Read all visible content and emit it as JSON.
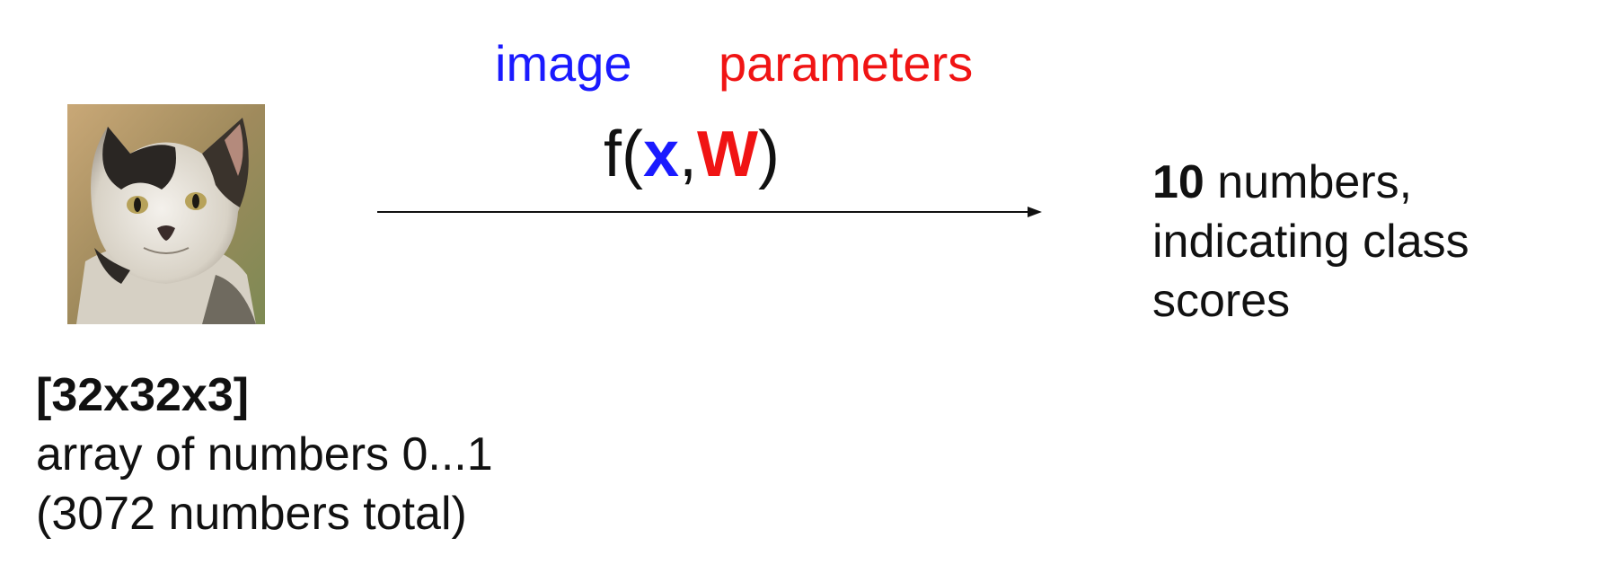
{
  "labels": {
    "image": "image",
    "parameters": "parameters"
  },
  "function": {
    "name": "f(",
    "x": "x",
    "comma": ",",
    "w": "W",
    "close": ")"
  },
  "output": {
    "count": "10",
    "line1_rest": " numbers,",
    "line2": "indicating class",
    "line3": "scores"
  },
  "input": {
    "shape": "[32x32x3]",
    "line1": "array of numbers 0...1",
    "line2": "(3072 numbers total)"
  },
  "colors": {
    "image_label": "#1a1aff",
    "parameters_label": "#f01414",
    "text": "#111111"
  },
  "icons": {
    "input_image": "cat-photo"
  }
}
